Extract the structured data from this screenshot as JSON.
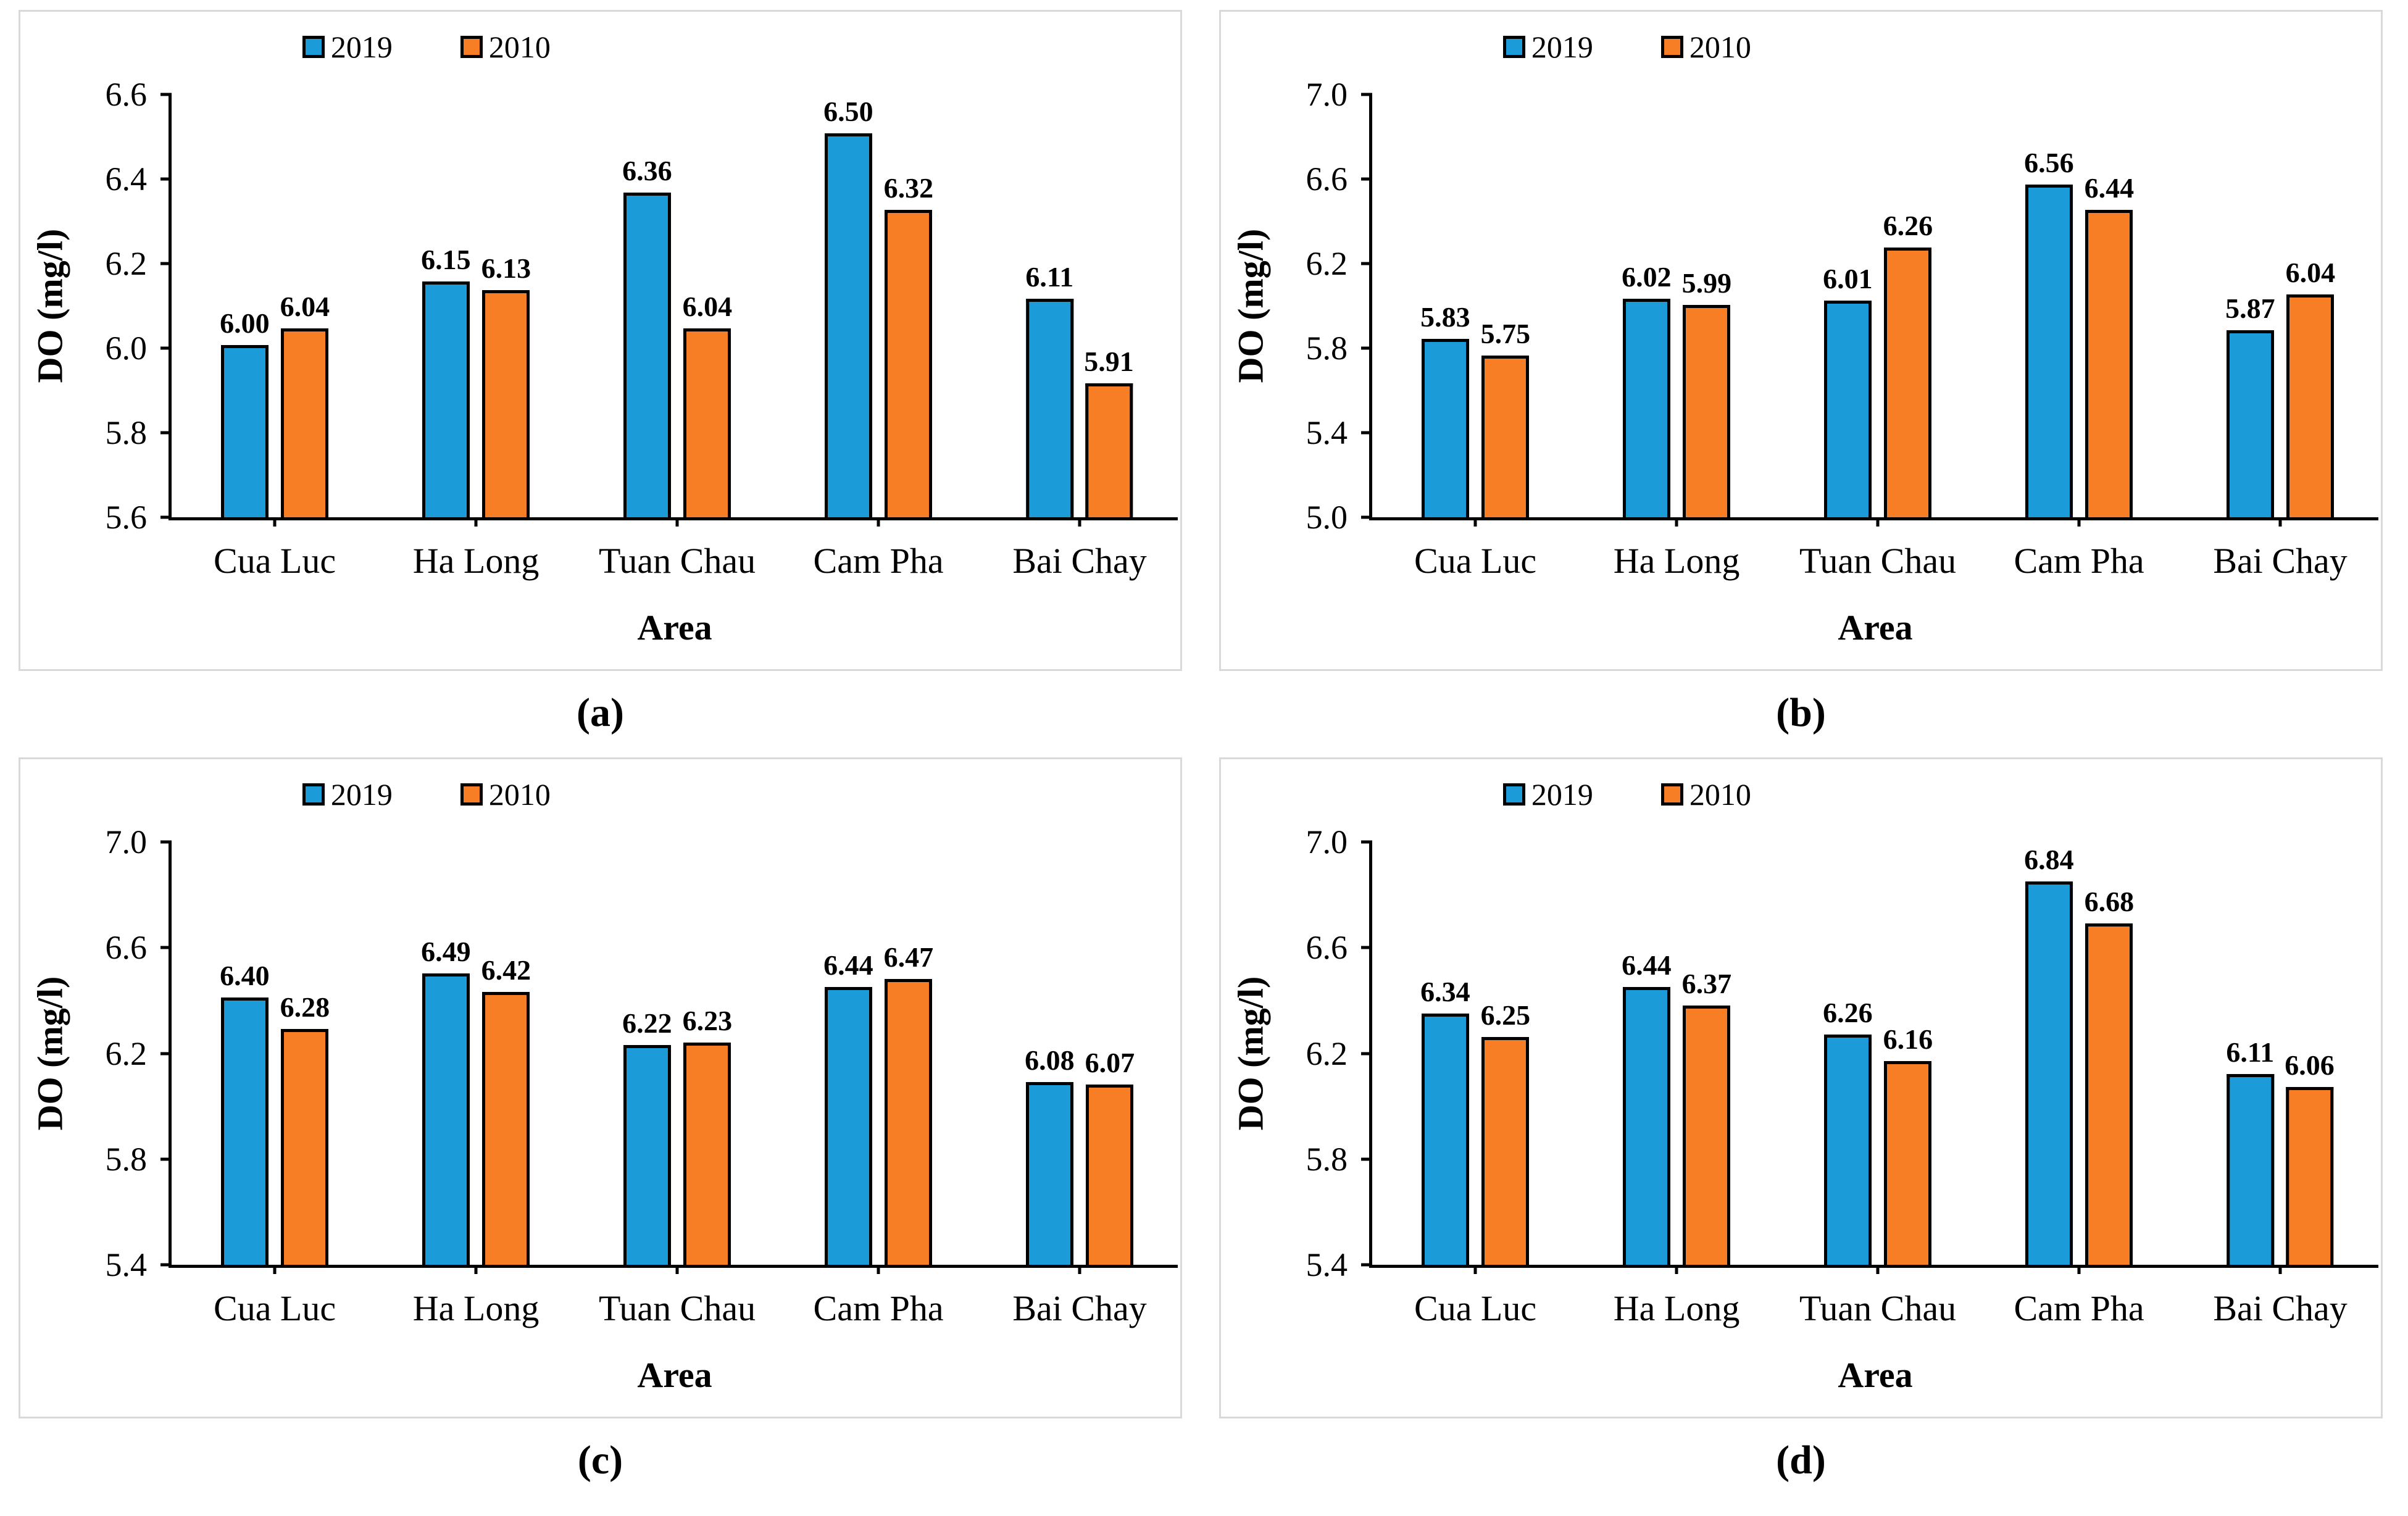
{
  "figure_title": "",
  "colors": {
    "series_2019": "#1b9bd8",
    "series_2010": "#f87e26",
    "axis": "#000000",
    "panel_border": "#d9d9d9",
    "background": "#ffffff"
  },
  "legend": {
    "items": [
      {
        "label": "2019",
        "color": "#1b9bd8"
      },
      {
        "label": "2010",
        "color": "#f87e26"
      }
    ]
  },
  "chart_data": [
    {
      "id": "a",
      "type": "bar",
      "caption": "(a)",
      "xlabel": "Area",
      "ylabel": "DO (mg/l)",
      "categories": [
        "Cua Luc",
        "Ha Long",
        "Tuan Chau",
        "Cam Pha",
        "Bai Chay"
      ],
      "series": [
        {
          "name": "2019",
          "color": "#1b9bd8",
          "values": [
            6.0,
            6.15,
            6.36,
            6.5,
            6.11
          ]
        },
        {
          "name": "2010",
          "color": "#f87e26",
          "values": [
            6.04,
            6.13,
            6.04,
            6.32,
            5.91
          ]
        }
      ],
      "ylim": [
        5.6,
        6.6
      ],
      "yticks": [
        6.6,
        6.4,
        6.2,
        6.0,
        5.8,
        5.6
      ],
      "grid": false,
      "legend_position": "top"
    },
    {
      "id": "b",
      "type": "bar",
      "caption": "(b)",
      "xlabel": "Area",
      "ylabel": "DO (mg/l)",
      "categories": [
        "Cua Luc",
        "Ha Long",
        "Tuan Chau",
        "Cam Pha",
        "Bai Chay"
      ],
      "series": [
        {
          "name": "2019",
          "color": "#1b9bd8",
          "values": [
            5.83,
            6.02,
            6.01,
            6.56,
            5.87
          ]
        },
        {
          "name": "2010",
          "color": "#f87e26",
          "values": [
            5.75,
            5.99,
            6.26,
            6.44,
            6.04
          ]
        }
      ],
      "ylim": [
        5.0,
        7.0
      ],
      "yticks": [
        7.0,
        6.6,
        6.2,
        5.8,
        5.4,
        5.0
      ],
      "grid": false,
      "legend_position": "top"
    },
    {
      "id": "c",
      "type": "bar",
      "caption": "(c)",
      "xlabel": "Area",
      "ylabel": "DO (mg/l)",
      "categories": [
        "Cua Luc",
        "Ha Long",
        "Tuan Chau",
        "Cam Pha",
        "Bai Chay"
      ],
      "series": [
        {
          "name": "2019",
          "color": "#1b9bd8",
          "values": [
            6.4,
            6.49,
            6.22,
            6.44,
            6.08
          ]
        },
        {
          "name": "2010",
          "color": "#f87e26",
          "values": [
            6.28,
            6.42,
            6.23,
            6.47,
            6.07
          ]
        }
      ],
      "ylim": [
        5.4,
        7.0
      ],
      "yticks": [
        7.0,
        6.6,
        6.2,
        5.8,
        5.4
      ],
      "grid": false,
      "legend_position": "top"
    },
    {
      "id": "d",
      "type": "bar",
      "caption": "(d)",
      "xlabel": "Area",
      "ylabel": "DO (mg/l)",
      "categories": [
        "Cua Luc",
        "Ha Long",
        "Tuan Chau",
        "Cam Pha",
        "Bai Chay"
      ],
      "series": [
        {
          "name": "2019",
          "color": "#1b9bd8",
          "values": [
            6.34,
            6.44,
            6.26,
            6.84,
            6.11
          ]
        },
        {
          "name": "2010",
          "color": "#f87e26",
          "values": [
            6.25,
            6.37,
            6.16,
            6.68,
            6.06
          ]
        }
      ],
      "ylim": [
        5.4,
        7.0
      ],
      "yticks": [
        7.0,
        6.6,
        6.2,
        5.8,
        5.4
      ],
      "grid": false,
      "legend_position": "top"
    }
  ]
}
